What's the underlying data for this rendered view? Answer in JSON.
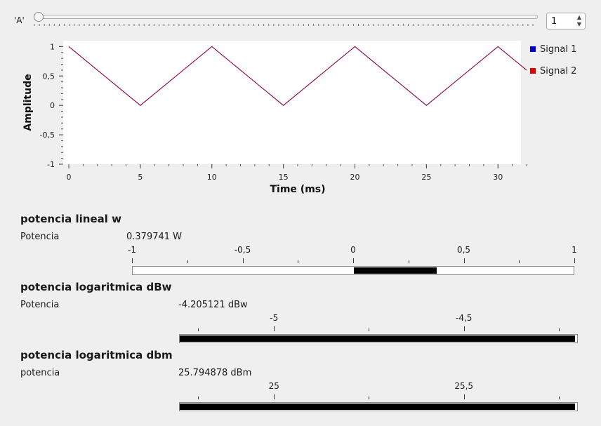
{
  "slider": {
    "label": "'A'",
    "value": 1,
    "min": 1,
    "max": 100
  },
  "spinbox": {
    "value": "1"
  },
  "chart_data": {
    "type": "line",
    "xlabel": "Time (ms)",
    "ylabel": "Amplitude",
    "xlim": [
      0,
      32
    ],
    "ylim": [
      -1.0,
      1.1
    ],
    "xticks": [
      0,
      5,
      10,
      15,
      20,
      25,
      30
    ],
    "xtick_labels": [
      "0",
      "5",
      "10",
      "15",
      "20",
      "25",
      "30"
    ],
    "yticks": [
      1,
      0.5,
      0,
      -0.5,
      -1
    ],
    "ytick_labels": [
      "1",
      "0,5",
      "0",
      "-0,5",
      "-1"
    ],
    "legend_position": "right",
    "series": [
      {
        "name": "Signal 1",
        "color": "#0000cc",
        "x": [
          0,
          5,
          10,
          15,
          20,
          25,
          30,
          32
        ],
        "y": [
          1,
          0,
          1,
          0,
          1,
          0,
          1,
          0.6
        ]
      },
      {
        "name": "Signal 2",
        "color": "#e00000",
        "x": [
          0,
          5,
          10,
          15,
          20,
          25,
          30,
          32
        ],
        "y": [
          1,
          0,
          1,
          0,
          1,
          0,
          1,
          0.6
        ]
      }
    ]
  },
  "sections": [
    {
      "title": "potencia lineal w",
      "label": "Potencia",
      "value_text": "0.379741 W",
      "min": -1,
      "max": 1,
      "value": 0.379741,
      "fill_from": 0,
      "ticks": [
        {
          "v": -1,
          "label": "-1"
        },
        {
          "v": -0.5,
          "label": "-0,5"
        },
        {
          "v": 0,
          "label": "0"
        },
        {
          "v": 0.5,
          "label": "0,5"
        },
        {
          "v": 1,
          "label": "1"
        }
      ],
      "minor_ticks": [
        -0.75,
        -0.25,
        0.25,
        0.75
      ]
    },
    {
      "title": "potencia logaritmica dBw",
      "label": "Potencia",
      "value_text": "-4.205121 dBw",
      "min": -5.25,
      "max": -4.2,
      "value": -4.205121,
      "fill_from": -5.25,
      "ticks": [
        {
          "v": -5,
          "label": "-5"
        },
        {
          "v": -4.5,
          "label": "-4,5"
        }
      ],
      "minor_ticks": [
        -5.2,
        -4.75,
        -4.25
      ]
    },
    {
      "title": "potencia logaritmica dbm",
      "label": "potencia",
      "value_text": "25.794878 dBm",
      "min": 24.75,
      "max": 25.8,
      "value": 25.794878,
      "fill_from": 24.75,
      "ticks": [
        {
          "v": 25,
          "label": "25"
        },
        {
          "v": 25.5,
          "label": "25,5"
        }
      ],
      "minor_ticks": [
        24.8,
        25.25,
        25.75
      ]
    }
  ]
}
